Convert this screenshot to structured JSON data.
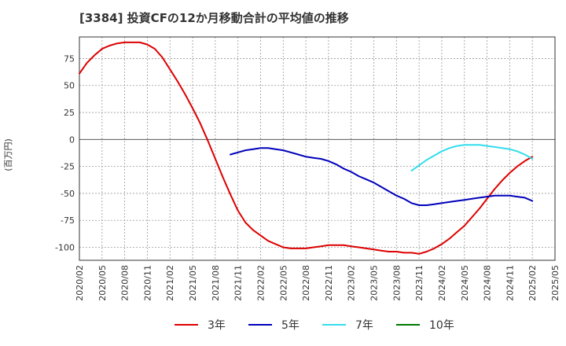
{
  "chart_data": {
    "type": "line",
    "title": "[3384]  投資CFの12か月移動合計の平均値の推移",
    "ylabel": "(百万円)",
    "xlabel": "",
    "ylim": [
      -112,
      95
    ],
    "yticks": [
      75,
      50,
      25,
      0,
      -25,
      -50,
      -75,
      -100
    ],
    "x_tick_labels": [
      "2020/02",
      "2020/05",
      "2020/08",
      "2020/11",
      "2021/02",
      "2021/05",
      "2021/08",
      "2021/11",
      "2022/02",
      "2022/05",
      "2022/08",
      "2022/11",
      "2023/02",
      "2023/05",
      "2023/08",
      "2023/11",
      "2024/02",
      "2024/05",
      "2024/08",
      "2024/11",
      "2025/02",
      "2025/05"
    ],
    "grid": true,
    "legend_position": "bottom",
    "colors": {
      "3年": "#dd0000",
      "5年": "#0000bb",
      "7年": "#33ddee",
      "10年": "#007700"
    },
    "series": [
      {
        "name": "3年",
        "x": [
          "2020/02",
          "2020/03",
          "2020/04",
          "2020/05",
          "2020/06",
          "2020/07",
          "2020/08",
          "2020/09",
          "2020/10",
          "2020/11",
          "2020/12",
          "2021/01",
          "2021/02",
          "2021/03",
          "2021/04",
          "2021/05",
          "2021/06",
          "2021/07",
          "2021/08",
          "2021/09",
          "2021/10",
          "2021/11",
          "2021/12",
          "2022/01",
          "2022/02",
          "2022/03",
          "2022/04",
          "2022/05",
          "2022/06",
          "2022/07",
          "2022/08",
          "2022/09",
          "2022/10",
          "2022/11",
          "2022/12",
          "2023/01",
          "2023/02",
          "2023/03",
          "2023/04",
          "2023/05",
          "2023/06",
          "2023/07",
          "2023/08",
          "2023/09",
          "2023/10",
          "2023/11",
          "2023/12",
          "2024/01",
          "2024/02",
          "2024/03",
          "2024/04",
          "2024/05",
          "2024/06",
          "2024/07",
          "2024/08",
          "2024/09",
          "2024/10",
          "2024/11",
          "2024/12",
          "2025/01",
          "2025/02"
        ],
        "values": [
          61,
          71,
          78,
          84,
          87,
          89,
          90,
          90,
          90,
          88,
          84,
          76,
          65,
          54,
          42,
          29,
          15,
          -1,
          -18,
          -35,
          -51,
          -66,
          -77,
          -84,
          -89,
          -94,
          -97,
          -100,
          -101,
          -101,
          -101,
          -100,
          -99,
          -98,
          -98,
          -98,
          -99,
          -100,
          -101,
          -102,
          -103,
          -104,
          -104,
          -105,
          -105,
          -106,
          -104,
          -101,
          -97,
          -92,
          -86,
          -80,
          -72,
          -64,
          -55,
          -46,
          -38,
          -31,
          -25,
          -20,
          -16
        ]
      },
      {
        "name": "5年",
        "x": [
          "2021/10",
          "2021/11",
          "2021/12",
          "2022/01",
          "2022/02",
          "2022/03",
          "2022/04",
          "2022/05",
          "2022/06",
          "2022/07",
          "2022/08",
          "2022/09",
          "2022/10",
          "2022/11",
          "2022/12",
          "2023/01",
          "2023/02",
          "2023/03",
          "2023/04",
          "2023/05",
          "2023/06",
          "2023/07",
          "2023/08",
          "2023/09",
          "2023/10",
          "2023/11",
          "2023/12",
          "2024/01",
          "2024/02",
          "2024/03",
          "2024/04",
          "2024/05",
          "2024/06",
          "2024/07",
          "2024/08",
          "2024/09",
          "2024/10",
          "2024/11",
          "2024/12",
          "2025/01",
          "2025/02"
        ],
        "values": [
          -14,
          -12,
          -10,
          -9,
          -8,
          -8,
          -9,
          -10,
          -12,
          -14,
          -16,
          -17,
          -18,
          -20,
          -23,
          -27,
          -30,
          -34,
          -37,
          -40,
          -44,
          -48,
          -52,
          -55,
          -59,
          -61,
          -61,
          -60,
          -59,
          -58,
          -57,
          -56,
          -55,
          -54,
          -53,
          -52,
          -52,
          -52,
          -53,
          -54,
          -57
        ]
      },
      {
        "name": "7年",
        "x": [
          "2023/10",
          "2023/11",
          "2023/12",
          "2024/01",
          "2024/02",
          "2024/03",
          "2024/04",
          "2024/05",
          "2024/06",
          "2024/07",
          "2024/08",
          "2024/09",
          "2024/10",
          "2024/11",
          "2024/12",
          "2025/01",
          "2025/02"
        ],
        "values": [
          -29,
          -24,
          -19,
          -15,
          -11,
          -8,
          -6,
          -5,
          -5,
          -5,
          -6,
          -7,
          -8,
          -9,
          -11,
          -14,
          -18
        ]
      },
      {
        "name": "10年",
        "x": [],
        "values": []
      }
    ]
  }
}
